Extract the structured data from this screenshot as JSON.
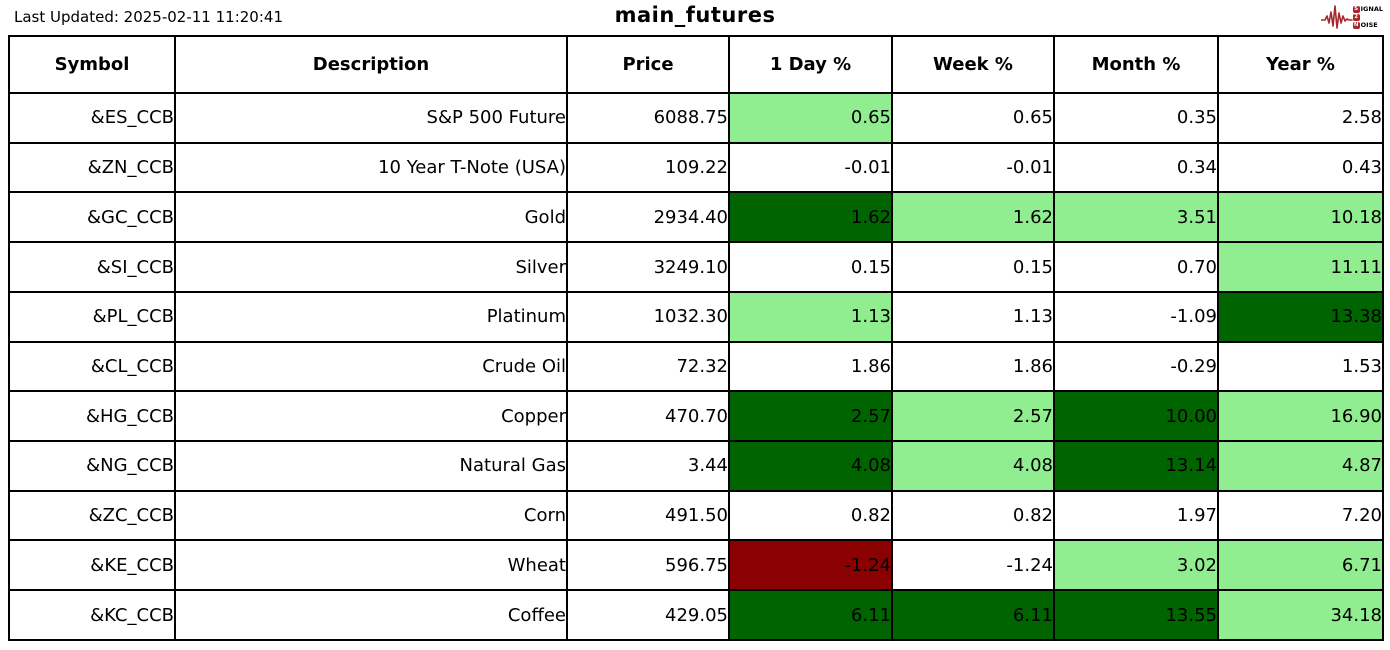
{
  "header": {
    "last_updated": "Last Updated: 2025-02-11 11:20:41",
    "title": "main_futures",
    "logo": {
      "color": "#a5282c",
      "lines": [
        {
          "badge": "S",
          "rest": "IGNAL"
        },
        {
          "badge": "2",
          "rest": ""
        },
        {
          "badge": "N",
          "rest": "OISE"
        }
      ]
    }
  },
  "colors": {
    "strong_gain": "#006400",
    "mild_gain": "#90ee90",
    "strong_loss": "#8b0000",
    "none": "#ffffff"
  },
  "chart_data": {
    "type": "table",
    "title": "main_futures",
    "columns": [
      "Symbol",
      "Description",
      "Price",
      "1 Day %",
      "Week %",
      "Month %",
      "Year %"
    ],
    "rows": [
      {
        "symbol": "&ES_CCB",
        "description": "S&P 500 Future",
        "price": "6088.75",
        "changes": [
          {
            "value": "0.65",
            "bg": "mild_gain"
          },
          {
            "value": "0.65",
            "bg": "none"
          },
          {
            "value": "0.35",
            "bg": "none"
          },
          {
            "value": "2.58",
            "bg": "none"
          }
        ]
      },
      {
        "symbol": "&ZN_CCB",
        "description": "10 Year T-Note (USA)",
        "price": "109.22",
        "changes": [
          {
            "value": "-0.01",
            "bg": "none"
          },
          {
            "value": "-0.01",
            "bg": "none"
          },
          {
            "value": "0.34",
            "bg": "none"
          },
          {
            "value": "0.43",
            "bg": "none"
          }
        ]
      },
      {
        "symbol": "&GC_CCB",
        "description": "Gold",
        "price": "2934.40",
        "changes": [
          {
            "value": "1.62",
            "bg": "strong_gain"
          },
          {
            "value": "1.62",
            "bg": "mild_gain"
          },
          {
            "value": "3.51",
            "bg": "mild_gain"
          },
          {
            "value": "10.18",
            "bg": "mild_gain"
          }
        ]
      },
      {
        "symbol": "&SI_CCB",
        "description": "Silver",
        "price": "3249.10",
        "changes": [
          {
            "value": "0.15",
            "bg": "none"
          },
          {
            "value": "0.15",
            "bg": "none"
          },
          {
            "value": "0.70",
            "bg": "none"
          },
          {
            "value": "11.11",
            "bg": "mild_gain"
          }
        ]
      },
      {
        "symbol": "&PL_CCB",
        "description": "Platinum",
        "price": "1032.30",
        "changes": [
          {
            "value": "1.13",
            "bg": "mild_gain"
          },
          {
            "value": "1.13",
            "bg": "none"
          },
          {
            "value": "-1.09",
            "bg": "none"
          },
          {
            "value": "13.38",
            "bg": "strong_gain"
          }
        ]
      },
      {
        "symbol": "&CL_CCB",
        "description": "Crude Oil",
        "price": "72.32",
        "changes": [
          {
            "value": "1.86",
            "bg": "none"
          },
          {
            "value": "1.86",
            "bg": "none"
          },
          {
            "value": "-0.29",
            "bg": "none"
          },
          {
            "value": "1.53",
            "bg": "none"
          }
        ]
      },
      {
        "symbol": "&HG_CCB",
        "description": "Copper",
        "price": "470.70",
        "changes": [
          {
            "value": "2.57",
            "bg": "strong_gain"
          },
          {
            "value": "2.57",
            "bg": "mild_gain"
          },
          {
            "value": "10.00",
            "bg": "strong_gain"
          },
          {
            "value": "16.90",
            "bg": "mild_gain"
          }
        ]
      },
      {
        "symbol": "&NG_CCB",
        "description": "Natural Gas",
        "price": "3.44",
        "changes": [
          {
            "value": "4.08",
            "bg": "strong_gain"
          },
          {
            "value": "4.08",
            "bg": "mild_gain"
          },
          {
            "value": "13.14",
            "bg": "strong_gain"
          },
          {
            "value": "4.87",
            "bg": "mild_gain"
          }
        ]
      },
      {
        "symbol": "&ZC_CCB",
        "description": "Corn",
        "price": "491.50",
        "changes": [
          {
            "value": "0.82",
            "bg": "none"
          },
          {
            "value": "0.82",
            "bg": "none"
          },
          {
            "value": "1.97",
            "bg": "none"
          },
          {
            "value": "7.20",
            "bg": "none"
          }
        ]
      },
      {
        "symbol": "&KE_CCB",
        "description": "Wheat",
        "price": "596.75",
        "changes": [
          {
            "value": "-1.24",
            "bg": "strong_loss"
          },
          {
            "value": "-1.24",
            "bg": "none"
          },
          {
            "value": "3.02",
            "bg": "mild_gain"
          },
          {
            "value": "6.71",
            "bg": "mild_gain"
          }
        ]
      },
      {
        "symbol": "&KC_CCB",
        "description": "Coffee",
        "price": "429.05",
        "changes": [
          {
            "value": "6.11",
            "bg": "strong_gain"
          },
          {
            "value": "6.11",
            "bg": "strong_gain"
          },
          {
            "value": "13.55",
            "bg": "strong_gain"
          },
          {
            "value": "34.18",
            "bg": "mild_gain"
          }
        ]
      }
    ]
  }
}
